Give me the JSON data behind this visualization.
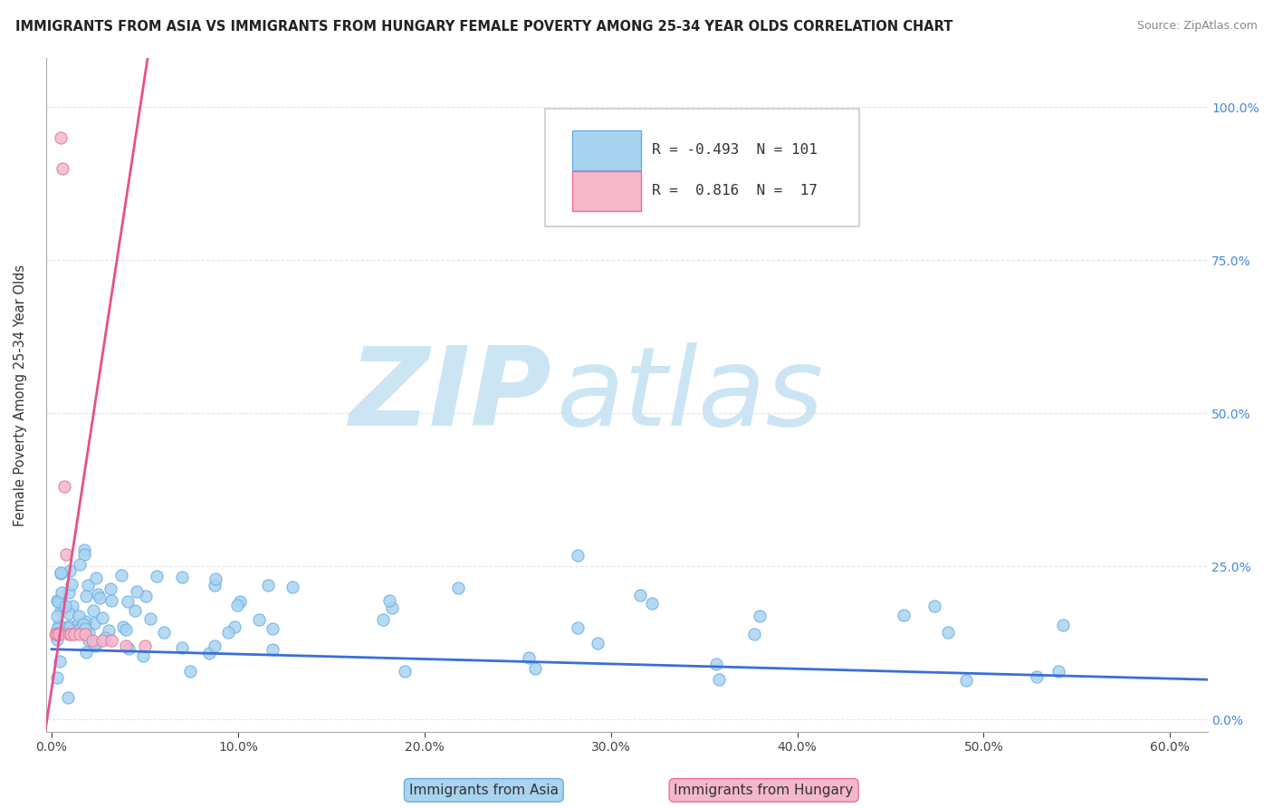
{
  "title": "IMMIGRANTS FROM ASIA VS IMMIGRANTS FROM HUNGARY FEMALE POVERTY AMONG 25-34 YEAR OLDS CORRELATION CHART",
  "source": "Source: ZipAtlas.com",
  "ylabel": "Female Poverty Among 25-34 Year Olds",
  "xlim": [
    -0.003,
    0.62
  ],
  "ylim": [
    -0.02,
    1.08
  ],
  "xtick_values": [
    0.0,
    0.1,
    0.2,
    0.3,
    0.4,
    0.5,
    0.6
  ],
  "xtick_labels": [
    "0.0%",
    "10.0%",
    "20.0%",
    "30.0%",
    "40.0%",
    "50.0%",
    "60.0%"
  ],
  "ytick_values": [
    0.0,
    0.25,
    0.5,
    0.75,
    1.0
  ],
  "ytick_labels": [
    "0.0%",
    "25.0%",
    "50.0%",
    "75.0%",
    "100.0%"
  ],
  "asia_color": "#a8d4f0",
  "asia_edge": "#6aade4",
  "hungary_color": "#f5b8cb",
  "hungary_edge": "#e87098",
  "asia_line_color": "#3a6fd8",
  "hungary_line_color": "#e8508a",
  "asia_R": -0.493,
  "asia_N": 101,
  "hungary_R": 0.816,
  "hungary_N": 17,
  "watermark_zip": "ZIP",
  "watermark_atlas": "atlas",
  "watermark_color": "#cce5f5"
}
